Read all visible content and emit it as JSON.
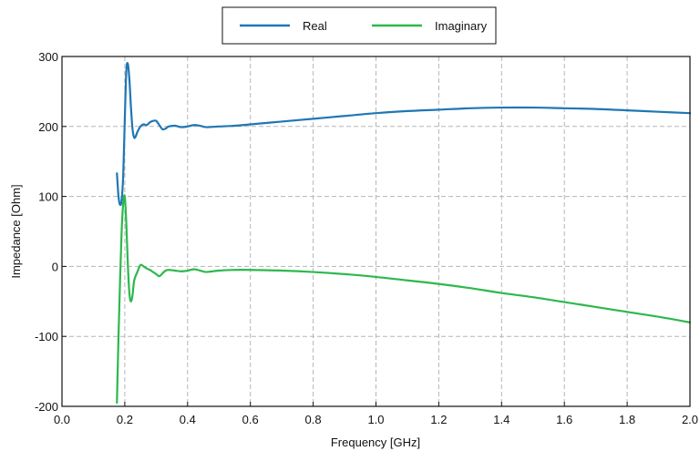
{
  "chart_data": {
    "type": "line",
    "title": "",
    "xlabel": "Frequency [GHz]",
    "ylabel": "Impedance [Ohm]",
    "xlim": [
      0.0,
      2.0
    ],
    "ylim": [
      -200,
      300
    ],
    "xticks": [
      0.0,
      0.2,
      0.4,
      0.6,
      0.8,
      1.0,
      1.2,
      1.4,
      1.6,
      1.8,
      2.0
    ],
    "xtick_labels": [
      "0.0",
      "0.2",
      "0.4",
      "0.6",
      "0.8",
      "1.0",
      "1.2",
      "1.4",
      "1.6",
      "1.8",
      "2.0"
    ],
    "yticks": [
      -200,
      -100,
      0,
      100,
      200,
      300
    ],
    "ytick_labels": [
      "-200",
      "-100",
      "0",
      "100",
      "200",
      "300"
    ],
    "grid": true,
    "legend_position": "top-center, above plot",
    "series": [
      {
        "name": "Real",
        "color": "#1f77b4",
        "x": [
          0.175,
          0.18,
          0.185,
          0.19,
          0.195,
          0.2,
          0.205,
          0.21,
          0.215,
          0.22,
          0.225,
          0.23,
          0.235,
          0.24,
          0.25,
          0.26,
          0.27,
          0.28,
          0.29,
          0.3,
          0.31,
          0.32,
          0.33,
          0.34,
          0.36,
          0.38,
          0.4,
          0.42,
          0.44,
          0.46,
          0.5,
          0.55,
          0.6,
          0.7,
          0.8,
          0.9,
          1.0,
          1.1,
          1.2,
          1.3,
          1.4,
          1.5,
          1.6,
          1.7,
          1.8,
          1.9,
          2.0
        ],
        "y": [
          133,
          100,
          88,
          95,
          130,
          210,
          280,
          289,
          265,
          225,
          195,
          184,
          186,
          192,
          200,
          203,
          202,
          206,
          208,
          208,
          202,
          196,
          197,
          200,
          201,
          199,
          200,
          202,
          201,
          199,
          200,
          201,
          203,
          207,
          211,
          215,
          219,
          222,
          224,
          226,
          227,
          227,
          226,
          225,
          223,
          221,
          219
        ]
      },
      {
        "name": "Imaginary",
        "color": "#2db84d",
        "x": [
          0.175,
          0.18,
          0.185,
          0.19,
          0.195,
          0.2,
          0.205,
          0.21,
          0.215,
          0.22,
          0.225,
          0.23,
          0.24,
          0.25,
          0.26,
          0.27,
          0.28,
          0.29,
          0.3,
          0.31,
          0.32,
          0.33,
          0.34,
          0.36,
          0.38,
          0.4,
          0.42,
          0.44,
          0.46,
          0.5,
          0.55,
          0.6,
          0.7,
          0.8,
          0.9,
          1.0,
          1.1,
          1.2,
          1.3,
          1.4,
          1.5,
          1.6,
          1.7,
          1.8,
          1.9,
          2.0
        ],
        "y": [
          -195,
          -100,
          -20,
          50,
          90,
          100,
          60,
          0,
          -40,
          -50,
          -40,
          -20,
          -8,
          2,
          0,
          -3,
          -5,
          -8,
          -11,
          -14,
          -10,
          -6,
          -5,
          -6,
          -7,
          -6,
          -4,
          -6,
          -8,
          -6,
          -5,
          -5,
          -6,
          -8,
          -11,
          -15,
          -20,
          -25,
          -31,
          -38,
          -44,
          -51,
          -58,
          -65,
          -72,
          -80
        ]
      }
    ]
  }
}
